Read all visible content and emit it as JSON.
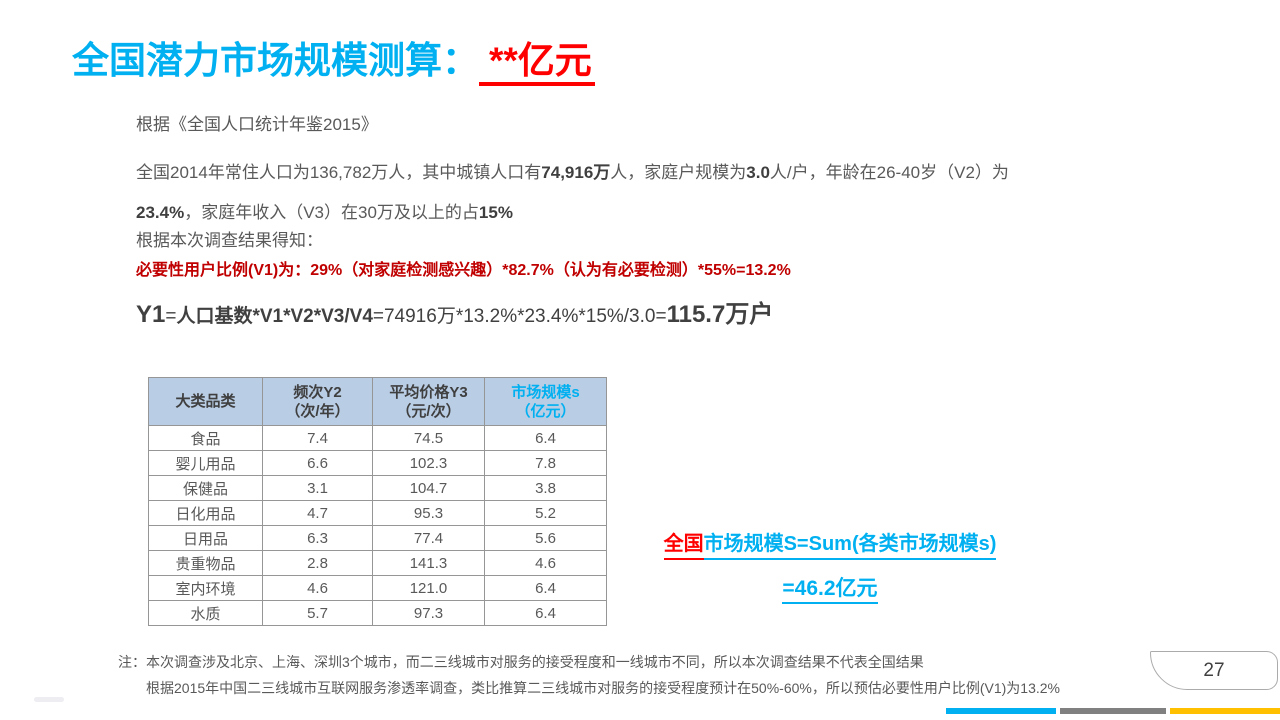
{
  "title": {
    "prefix": "全国潜力市场规模测算：",
    "highlight": "**亿元"
  },
  "body": {
    "source_line": "根据《全国人口统计年鉴2015》",
    "para_line1": {
      "s1": "全国2014年常住人口为136,782万人，其中城镇人口有",
      "s2": "74,916万",
      "s3": "人，家庭户规模为",
      "s4": "3.0",
      "s5": "人/户，年龄在26-40岁（V2）为"
    },
    "para_line2": {
      "s1": "23.4%",
      "s2": "，家庭年收入（V3）在30万及以上的占",
      "s3": "15%"
    },
    "survey_line": "根据本次调查结果得知：",
    "v1_line": "必要性用户比例(V1)为：29%（对家庭检测感兴趣）*82.7%（认为有必要检测）*55%=13.2%",
    "y1_formula": {
      "s1": "Y1",
      "s2": "=",
      "s3": "人口基数*V1*V2*V3/V4",
      "s4": "=74916万*13.2%*23.4%*15%/3.0=",
      "s5": "115.7万户"
    }
  },
  "table": {
    "headers": [
      {
        "line1": "大类品类",
        "line2": ""
      },
      {
        "line1": "频次Y2",
        "line2": "（次/年）"
      },
      {
        "line1": "平均价格Y3",
        "line2": "（元/次）"
      },
      {
        "line1": "市场规模s",
        "line2": "（亿元）"
      }
    ],
    "rows": [
      [
        "食品",
        "7.4",
        "74.5",
        "6.4"
      ],
      [
        "婴儿用品",
        "6.6",
        "102.3",
        "7.8"
      ],
      [
        "保健品",
        "3.1",
        "104.7",
        "3.8"
      ],
      [
        "日化用品",
        "4.7",
        "95.3",
        "5.2"
      ],
      [
        "日用品",
        "6.3",
        "77.4",
        "5.6"
      ],
      [
        "贵重物品",
        "2.8",
        "141.3",
        "4.6"
      ],
      [
        "室内环境",
        "4.6",
        "121.0",
        "6.4"
      ],
      [
        "水质",
        "5.7",
        "97.3",
        "6.4"
      ]
    ]
  },
  "summary": {
    "line1_red": "全国",
    "line1_blue": "市场规模S=Sum(各类市场规模s)",
    "line2": "=46.2亿元"
  },
  "notes": {
    "note1": "注：本次调查涉及北京、上海、深圳3个城市，而二三线城市对服务的接受程度和一线城市不同，所以本次调查结果不代表全国结果",
    "note2": "根据2015年中国二三线城市互联网服务渗透率调查，类比推算二三线城市对服务的接受程度预计在50%-60%，所以预估必要性用户比例(V1)为13.2%"
  },
  "page_number": "27",
  "colors": {
    "accent_blue": "#00B0F0",
    "accent_red": "#FF0000",
    "dark_red": "#C00000",
    "table_header_bg": "#B9CDE5",
    "bar_gray": "#808080",
    "bar_yellow": "#FFC000"
  }
}
